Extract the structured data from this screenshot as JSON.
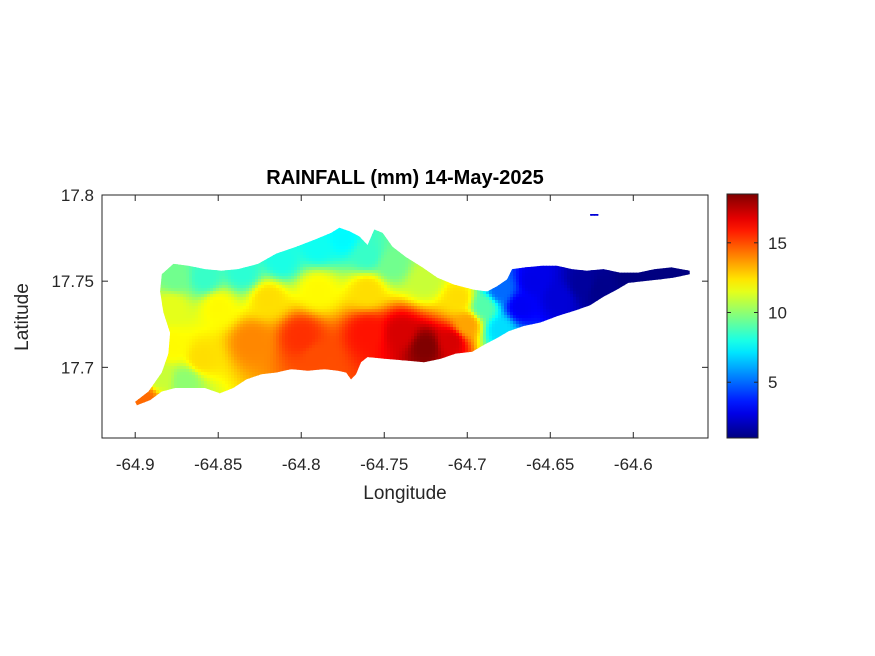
{
  "chart_data": {
    "type": "heatmap",
    "title": "RAINFALL (mm) 14-May-2025",
    "xlabel": "Longitude",
    "ylabel": "Latitude",
    "xlim": [
      -64.92,
      -64.555
    ],
    "ylim": [
      17.659,
      17.8
    ],
    "xticks": [
      -64.9,
      -64.85,
      -64.8,
      -64.75,
      -64.7,
      -64.65,
      -64.6
    ],
    "xtick_labels": [
      "-64.9",
      "-64.85",
      "-64.8",
      "-64.75",
      "-64.7",
      "-64.65",
      "-64.6"
    ],
    "yticks": [
      17.7,
      17.75,
      17.8
    ],
    "ytick_labels": [
      "17.7",
      "17.75",
      "17.8"
    ],
    "colorbar": {
      "min": 1,
      "max": 18.5,
      "ticks": [
        5,
        10,
        15
      ],
      "tick_labels": [
        "5",
        "10",
        "15"
      ],
      "colormap": "jet"
    },
    "grid": false,
    "island_outline": [
      [
        -64.9,
        17.68
      ],
      [
        -64.892,
        17.686
      ],
      [
        -64.884,
        17.697
      ],
      [
        -64.88,
        17.708
      ],
      [
        -64.879,
        17.72
      ],
      [
        -64.883,
        17.732
      ],
      [
        -64.885,
        17.744
      ],
      [
        -64.884,
        17.754
      ],
      [
        -64.877,
        17.76
      ],
      [
        -64.868,
        17.759
      ],
      [
        -64.858,
        17.757
      ],
      [
        -64.848,
        17.756
      ],
      [
        -64.838,
        17.757
      ],
      [
        -64.826,
        17.76
      ],
      [
        -64.815,
        17.766
      ],
      [
        -64.803,
        17.77
      ],
      [
        -64.792,
        17.774
      ],
      [
        -64.782,
        17.778
      ],
      [
        -64.777,
        17.781
      ],
      [
        -64.771,
        17.779
      ],
      [
        -64.765,
        17.776
      ],
      [
        -64.76,
        17.771
      ],
      [
        -64.756,
        17.78
      ],
      [
        -64.751,
        17.778
      ],
      [
        -64.745,
        17.77
      ],
      [
        -64.737,
        17.764
      ],
      [
        -64.727,
        17.758
      ],
      [
        -64.718,
        17.752
      ],
      [
        -64.708,
        17.748
      ],
      [
        -64.696,
        17.745
      ],
      [
        -64.688,
        17.744
      ],
      [
        -64.682,
        17.747
      ],
      [
        -64.676,
        17.751
      ],
      [
        -64.673,
        17.757
      ],
      [
        -64.665,
        17.758
      ],
      [
        -64.655,
        17.759
      ],
      [
        -64.646,
        17.759
      ],
      [
        -64.637,
        17.757
      ],
      [
        -64.628,
        17.756
      ],
      [
        -64.618,
        17.757
      ],
      [
        -64.608,
        17.755
      ],
      [
        -64.597,
        17.755
      ],
      [
        -64.587,
        17.757
      ],
      [
        -64.577,
        17.758
      ],
      [
        -64.566,
        17.756
      ],
      [
        -64.566,
        17.754
      ],
      [
        -64.576,
        17.752
      ],
      [
        -64.584,
        17.751
      ],
      [
        -64.594,
        17.75
      ],
      [
        -64.603,
        17.749
      ],
      [
        -64.61,
        17.745
      ],
      [
        -64.618,
        17.741
      ],
      [
        -64.626,
        17.736
      ],
      [
        -64.635,
        17.733
      ],
      [
        -64.645,
        17.73
      ],
      [
        -64.656,
        17.726
      ],
      [
        -64.666,
        17.724
      ],
      [
        -64.675,
        17.721
      ],
      [
        -64.682,
        17.717
      ],
      [
        -64.69,
        17.713
      ],
      [
        -64.697,
        17.709
      ],
      [
        -64.707,
        17.708
      ],
      [
        -64.716,
        17.705
      ],
      [
        -64.726,
        17.703
      ],
      [
        -64.738,
        17.704
      ],
      [
        -64.75,
        17.705
      ],
      [
        -64.76,
        17.706
      ],
      [
        -64.764,
        17.703
      ],
      [
        -64.767,
        17.696
      ],
      [
        -64.77,
        17.693
      ],
      [
        -64.773,
        17.697
      ],
      [
        -64.778,
        17.698
      ],
      [
        -64.786,
        17.699
      ],
      [
        -64.796,
        17.698
      ],
      [
        -64.806,
        17.699
      ],
      [
        -64.815,
        17.697
      ],
      [
        -64.824,
        17.696
      ],
      [
        -64.833,
        17.693
      ],
      [
        -64.841,
        17.688
      ],
      [
        -64.849,
        17.685
      ],
      [
        -64.858,
        17.688
      ],
      [
        -64.867,
        17.688
      ],
      [
        -64.876,
        17.688
      ],
      [
        -64.884,
        17.686
      ],
      [
        -64.891,
        17.681
      ],
      [
        -64.899,
        17.678
      ]
    ],
    "islet_outline": [
      [
        -64.626,
        17.789
      ],
      [
        -64.621,
        17.789
      ],
      [
        -64.621,
        17.788
      ],
      [
        -64.626,
        17.788
      ]
    ],
    "rain_points": [
      {
        "x": -64.895,
        "y": 17.682,
        "v": 14.5
      },
      {
        "x": -64.885,
        "y": 17.694,
        "v": 11.0
      },
      {
        "x": -64.87,
        "y": 17.692,
        "v": 10.0
      },
      {
        "x": -64.878,
        "y": 17.712,
        "v": 12.0
      },
      {
        "x": -64.878,
        "y": 17.735,
        "v": 11.5
      },
      {
        "x": -64.876,
        "y": 17.752,
        "v": 9.5
      },
      {
        "x": -64.858,
        "y": 17.752,
        "v": 8.5
      },
      {
        "x": -64.835,
        "y": 17.755,
        "v": 8.3
      },
      {
        "x": -64.812,
        "y": 17.762,
        "v": 8.0
      },
      {
        "x": -64.79,
        "y": 17.77,
        "v": 7.8
      },
      {
        "x": -64.775,
        "y": 17.775,
        "v": 7.5
      },
      {
        "x": -64.76,
        "y": 17.765,
        "v": 8.5
      },
      {
        "x": -64.745,
        "y": 17.76,
        "v": 9.5
      },
      {
        "x": -64.725,
        "y": 17.75,
        "v": 11.0
      },
      {
        "x": -64.85,
        "y": 17.735,
        "v": 12.0
      },
      {
        "x": -64.82,
        "y": 17.74,
        "v": 12.5
      },
      {
        "x": -64.79,
        "y": 17.745,
        "v": 12.0
      },
      {
        "x": -64.76,
        "y": 17.745,
        "v": 12.5
      },
      {
        "x": -64.86,
        "y": 17.705,
        "v": 12.5
      },
      {
        "x": -64.83,
        "y": 17.715,
        "v": 14.0
      },
      {
        "x": -64.8,
        "y": 17.718,
        "v": 15.5
      },
      {
        "x": -64.79,
        "y": 17.705,
        "v": 15.0
      },
      {
        "x": -64.76,
        "y": 17.72,
        "v": 16.0
      },
      {
        "x": -64.74,
        "y": 17.72,
        "v": 17.0
      },
      {
        "x": -64.725,
        "y": 17.712,
        "v": 18.5
      },
      {
        "x": -64.71,
        "y": 17.715,
        "v": 17.0
      },
      {
        "x": -64.7,
        "y": 17.725,
        "v": 13.5
      },
      {
        "x": -64.705,
        "y": 17.74,
        "v": 12.5
      },
      {
        "x": -64.69,
        "y": 17.735,
        "v": 9.0
      },
      {
        "x": -64.68,
        "y": 17.722,
        "v": 7.0
      },
      {
        "x": -64.68,
        "y": 17.745,
        "v": 5.0
      },
      {
        "x": -64.668,
        "y": 17.735,
        "v": 3.0
      },
      {
        "x": -64.66,
        "y": 17.75,
        "v": 2.8
      },
      {
        "x": -64.645,
        "y": 17.74,
        "v": 2.5
      },
      {
        "x": -64.63,
        "y": 17.748,
        "v": 1.5
      },
      {
        "x": -64.62,
        "y": 17.745,
        "v": 1.2
      },
      {
        "x": -64.6,
        "y": 17.752,
        "v": 1.0
      },
      {
        "x": -64.58,
        "y": 17.755,
        "v": 1.0
      },
      {
        "x": -64.624,
        "y": 17.7885,
        "v": 2.5
      }
    ]
  }
}
